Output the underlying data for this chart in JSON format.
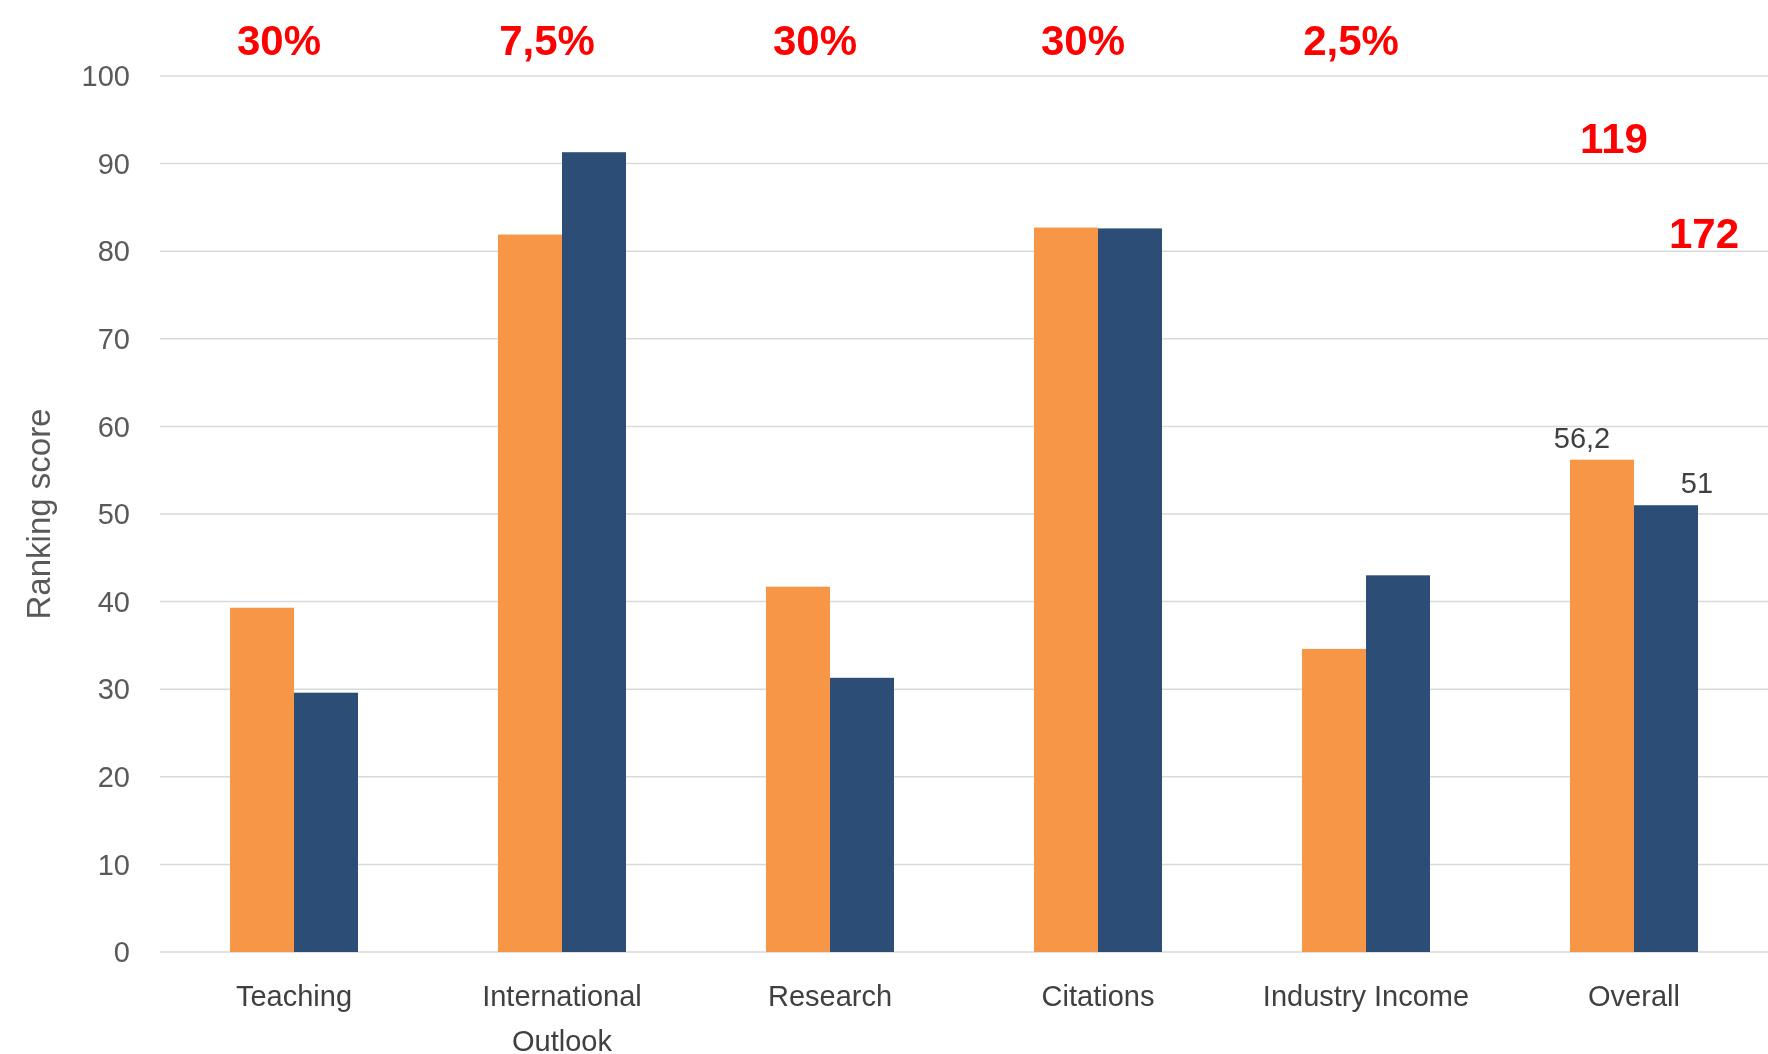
{
  "chart_data": {
    "type": "bar",
    "ylabel": "Ranking score",
    "categories": [
      "Teaching",
      "International Outlook",
      "Research",
      "Citations",
      "Industry Income",
      "Overall"
    ],
    "series": [
      {
        "color": "#f79646",
        "values": [
          39.3,
          81.9,
          41.7,
          82.7,
          34.6,
          56.2
        ],
        "value_labels": [
          null,
          null,
          null,
          null,
          null,
          "56,2"
        ]
      },
      {
        "color": "#2c4d75",
        "values": [
          29.6,
          91.3,
          31.3,
          82.6,
          43.0,
          51
        ],
        "value_labels": [
          null,
          null,
          null,
          null,
          null,
          "51"
        ]
      }
    ],
    "ylim": [
      0,
      100
    ],
    "yticks": [
      0,
      10,
      20,
      30,
      40,
      50,
      60,
      70,
      80,
      90,
      100
    ],
    "grid": "y",
    "annotations": [
      "30%",
      "7,5%",
      "30%",
      "30%",
      "2,5%",
      "119",
      "172"
    ]
  }
}
